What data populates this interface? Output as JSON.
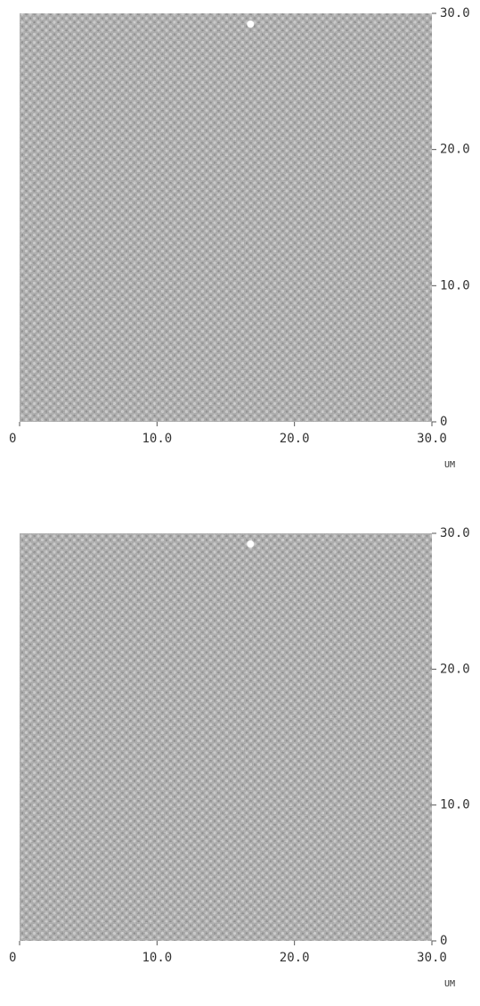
{
  "chart_data": [
    {
      "type": "image",
      "xlim": [
        0,
        30
      ],
      "ylim": [
        0,
        30
      ],
      "xticks": [
        0,
        {
          "value": 10,
          "label": "10.0"
        },
        {
          "value": 20,
          "label": "20.0"
        },
        {
          "value": 30,
          "label": "30.0"
        }
      ],
      "yticks": [
        0,
        {
          "value": 10,
          "label": "10.0"
        },
        {
          "value": 20,
          "label": "20.0"
        },
        {
          "value": 30,
          "label": "30.0"
        }
      ],
      "xlabel": "UM"
    },
    {
      "type": "image",
      "xlim": [
        0,
        30
      ],
      "ylim": [
        0,
        30
      ],
      "xticks": [
        0,
        {
          "value": 10,
          "label": "10.0"
        },
        {
          "value": 20,
          "label": "20.0"
        },
        {
          "value": 30,
          "label": "30.0"
        }
      ],
      "yticks": [
        0,
        {
          "value": 10,
          "label": "10.0"
        },
        {
          "value": 20,
          "label": "20.0"
        },
        {
          "value": 30,
          "label": "30.0"
        }
      ],
      "xlabel": "UM"
    }
  ]
}
